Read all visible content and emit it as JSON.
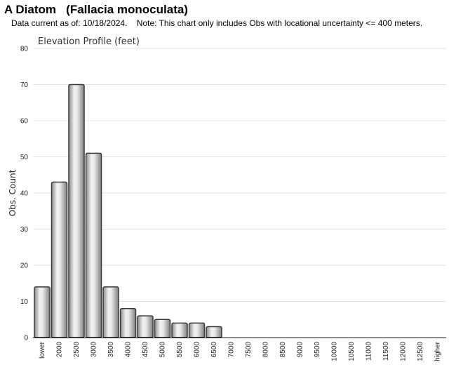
{
  "header": {
    "title": "A Diatom   (Fallacia monoculata)",
    "subtitle": "Data current as of: 10/18/2024.    Note: This chart only includes Obs with locational uncertainty <= 400 meters."
  },
  "chart_data": {
    "type": "bar",
    "title": "Elevation Profile (feet)",
    "xlabel": "",
    "ylabel": "Obs. Count",
    "ylim": [
      0,
      80
    ],
    "yticks": [
      0,
      10,
      20,
      30,
      40,
      50,
      60,
      70,
      80
    ],
    "grid": true,
    "categories": [
      "lower",
      "2000",
      "2500",
      "3000",
      "3500",
      "4000",
      "4500",
      "5000",
      "5500",
      "6000",
      "6500",
      "7000",
      "7500",
      "8000",
      "8500",
      "9000",
      "9500",
      "10000",
      "10500",
      "11000",
      "11500",
      "12000",
      "12500",
      "higher"
    ],
    "values": [
      14,
      43,
      70,
      51,
      14,
      8,
      6,
      5,
      4,
      4,
      3,
      0,
      0,
      0,
      0,
      0,
      0,
      0,
      0,
      0,
      0,
      0,
      0,
      0
    ]
  },
  "colors": {
    "bar_fill_light": "#f4f4f4",
    "bar_fill_dark": "#7a7a7a",
    "bar_stroke": "#3a3a3a",
    "grid": "#e0e0e0",
    "axis": "#000000"
  }
}
